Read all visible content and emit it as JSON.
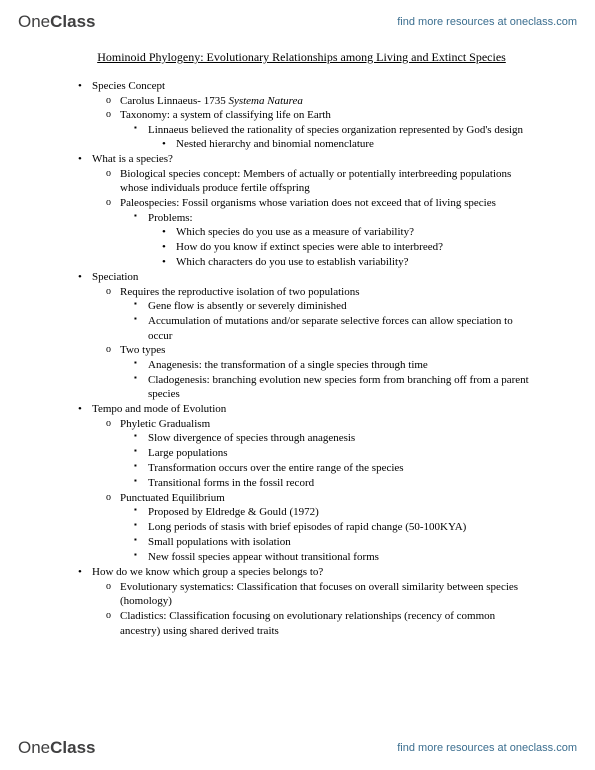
{
  "brand": {
    "one": "One",
    "class": "Class"
  },
  "header_link": "find more resources at oneclass.com",
  "footer_link": "find more resources at oneclass.com",
  "title": "Hominoid Phylogeny: Evolutionary Relationships among Living and Extinct Species",
  "b1": "•",
  "b2": "o",
  "b3": "▪",
  "b4": "•",
  "s1_h": "Species Concept",
  "s1_1a": "Carolus Linnaeus- 1735 ",
  "s1_1b": "Systema Naturea",
  "s1_2": "Taxonomy: a system of classifying life on Earth",
  "s1_2_1": "Linnaeus believed the rationality of species organization represented by God's design",
  "s1_2_1_1": "Nested hierarchy and binomial nomenclature",
  "s2_h": "What is a species?",
  "s2_1": "Biological species concept: Members of actually or potentially interbreeding populations whose individuals produce fertile offspring",
  "s2_2": "Paleospecies: Fossil organisms whose variation does not exceed that of living species",
  "s2_2_1": "Problems:",
  "s2_2_1_1": "Which species do you use as a measure of variability?",
  "s2_2_1_2": "How do you know if extinct species were able to interbreed?",
  "s2_2_1_3": "Which characters do you use to establish variability?",
  "s3_h": "Speciation",
  "s3_1": "Requires the reproductive isolation of two populations",
  "s3_1_1": "Gene flow is absently or severely diminished",
  "s3_1_2": "Accumulation of mutations and/or separate selective forces can allow speciation to occur",
  "s3_2": "Two types",
  "s3_2_1": "Anagenesis: the transformation of a single species through time",
  "s3_2_2": "Cladogenesis: branching evolution new species form from branching off from a parent species",
  "s4_h": "Tempo and mode of Evolution",
  "s4_1": "Phyletic Gradualism",
  "s4_1_1": "Slow divergence of species through anagenesis",
  "s4_1_2": "Large populations",
  "s4_1_3": "Transformation occurs over the entire range of the species",
  "s4_1_4": "Transitional forms in the fossil record",
  "s4_2": "Punctuated Equilibrium",
  "s4_2_1": "Proposed by Eldredge & Gould (1972)",
  "s4_2_2": "Long periods of stasis with brief episodes of rapid change (50-100KYA)",
  "s4_2_3": "Small populations with isolation",
  "s4_2_4": "New fossil species appear without transitional forms",
  "s5_h": "How do we know which group a species belongs to?",
  "s5_1": "Evolutionary systematics: Classification that focuses on overall similarity between species (homology)",
  "s5_2": "Cladistics: Classification focusing on evolutionary relationships (recency of common ancestry) using shared derived traits"
}
